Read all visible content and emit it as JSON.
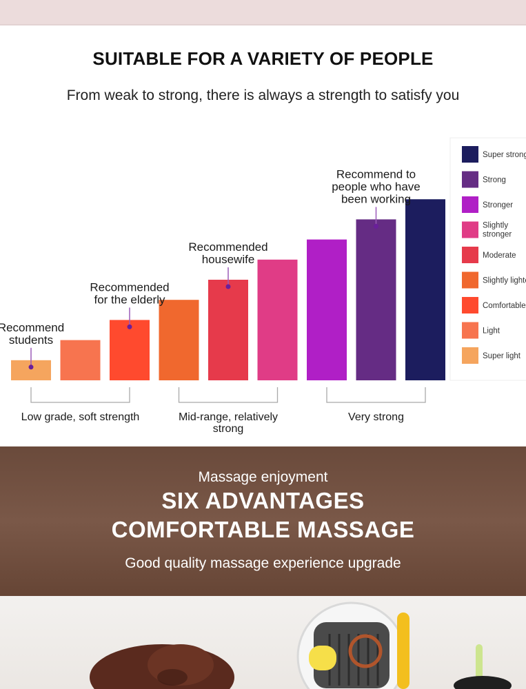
{
  "header": {
    "title": "SUITABLE FOR A VARIETY OF PEOPLE",
    "subtitle": "From weak to strong, there is always a strength to satisfy you"
  },
  "chart_data": {
    "type": "bar",
    "categories": [
      "Super light",
      "Light",
      "Comfortable",
      "Slightly lighter",
      "Moderate",
      "Slightly stronger",
      "Stronger",
      "Strong",
      "Super strong"
    ],
    "values": [
      1,
      2,
      3,
      4,
      5,
      6,
      7,
      8,
      9
    ],
    "colors": [
      "#f5a55e",
      "#f7744f",
      "#ff4a2e",
      "#f0682e",
      "#e63a4b",
      "#e03c86",
      "#b01fc6",
      "#652c84",
      "#1c1d5e"
    ],
    "legend": {
      "position": "right",
      "entries": [
        {
          "label": "Super strong",
          "color": "#1c1d5e"
        },
        {
          "label": "Strong",
          "color": "#652c84"
        },
        {
          "label": "Stronger",
          "color": "#b01fc6"
        },
        {
          "label": "Slightly stronger",
          "color": "#e03c86"
        },
        {
          "label": "Moderate",
          "color": "#e63a4b"
        },
        {
          "label": "Slightly lighter",
          "color": "#f0682e"
        },
        {
          "label": "Comfortable",
          "color": "#ff4a2e"
        },
        {
          "label": "Light",
          "color": "#f7744f"
        },
        {
          "label": "Super light",
          "color": "#f5a55e"
        }
      ]
    },
    "annotations": [
      {
        "bar_index": 0,
        "lines": [
          "Recommend",
          "students"
        ]
      },
      {
        "bar_index": 2,
        "lines": [
          "Recommended",
          "for the elderly"
        ]
      },
      {
        "bar_index": 4,
        "lines": [
          "Recommended",
          "housewife"
        ]
      },
      {
        "bar_index": 7,
        "lines": [
          "Recommend to",
          "people who have",
          "been working"
        ]
      }
    ],
    "groups": [
      {
        "lines": [
          "Low grade, soft strength"
        ],
        "bars": [
          0,
          2
        ]
      },
      {
        "lines": [
          "Mid-range, relatively",
          "strong"
        ],
        "bars": [
          3,
          5
        ]
      },
      {
        "lines": [
          "Very strong"
        ],
        "bars": [
          6,
          8
        ]
      }
    ],
    "annotation_dot_color": "#6a1f9a",
    "grid": false
  },
  "banner": {
    "kicker": "Massage enjoyment",
    "title_line1": "SIX ADVANTAGES",
    "title_line2": "COMFORTABLE MASSAGE",
    "tagline": "Good quality massage experience upgrade"
  }
}
